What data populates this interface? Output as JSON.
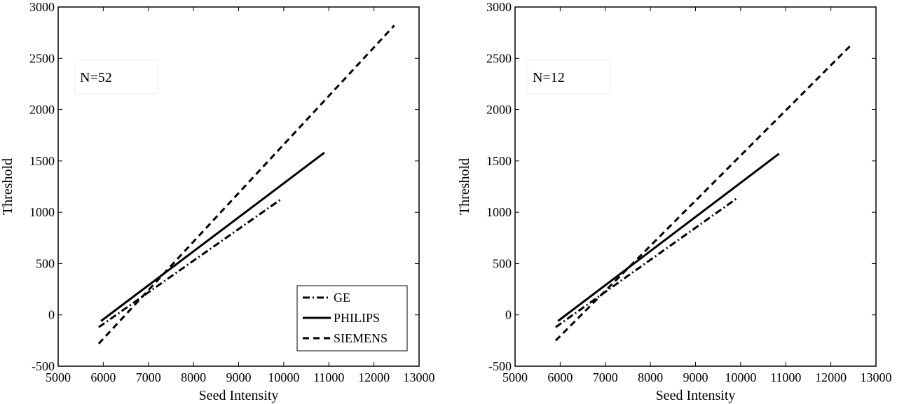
{
  "chart_data": [
    {
      "type": "line",
      "xlabel": "Seed Intensity",
      "ylabel": "Threshold",
      "xlim": [
        5000,
        13000
      ],
      "ylim": [
        -500,
        3000
      ],
      "xticks": [
        5000,
        6000,
        7000,
        8000,
        9000,
        10000,
        11000,
        12000,
        13000
      ],
      "yticks": [
        -500,
        0,
        500,
        1000,
        1500,
        2000,
        2500,
        3000
      ],
      "grid": false,
      "annotation": "N=52",
      "legend": {
        "placement": "bottom-right",
        "entries": [
          "GE",
          "PHILIPS",
          "SIEMENS"
        ]
      },
      "series": [
        {
          "name": "GE",
          "style": "dashdot",
          "x": [
            5900,
            9950
          ],
          "y": [
            -120,
            1130
          ]
        },
        {
          "name": "PHILIPS",
          "style": "solid",
          "x": [
            5950,
            10900
          ],
          "y": [
            -60,
            1580
          ]
        },
        {
          "name": "SIEMENS",
          "style": "dashed",
          "x": [
            5900,
            12450
          ],
          "y": [
            -280,
            2820
          ]
        }
      ]
    },
    {
      "type": "line",
      "xlabel": "Seed Intensity",
      "ylabel": "Threshold",
      "xlim": [
        5000,
        13000
      ],
      "ylim": [
        -500,
        3000
      ],
      "xticks": [
        5000,
        6000,
        7000,
        8000,
        9000,
        10000,
        11000,
        12000,
        13000
      ],
      "yticks": [
        -500,
        0,
        500,
        1000,
        1500,
        2000,
        2500,
        3000
      ],
      "grid": false,
      "annotation": "N=12",
      "legend": null,
      "series": [
        {
          "name": "GE",
          "style": "dashdot",
          "x": [
            5900,
            9900
          ],
          "y": [
            -120,
            1130
          ]
        },
        {
          "name": "PHILIPS",
          "style": "solid",
          "x": [
            5950,
            10850
          ],
          "y": [
            -60,
            1570
          ]
        },
        {
          "name": "SIEMENS",
          "style": "dashed",
          "x": [
            5900,
            12450
          ],
          "y": [
            -250,
            2630
          ]
        }
      ]
    }
  ]
}
